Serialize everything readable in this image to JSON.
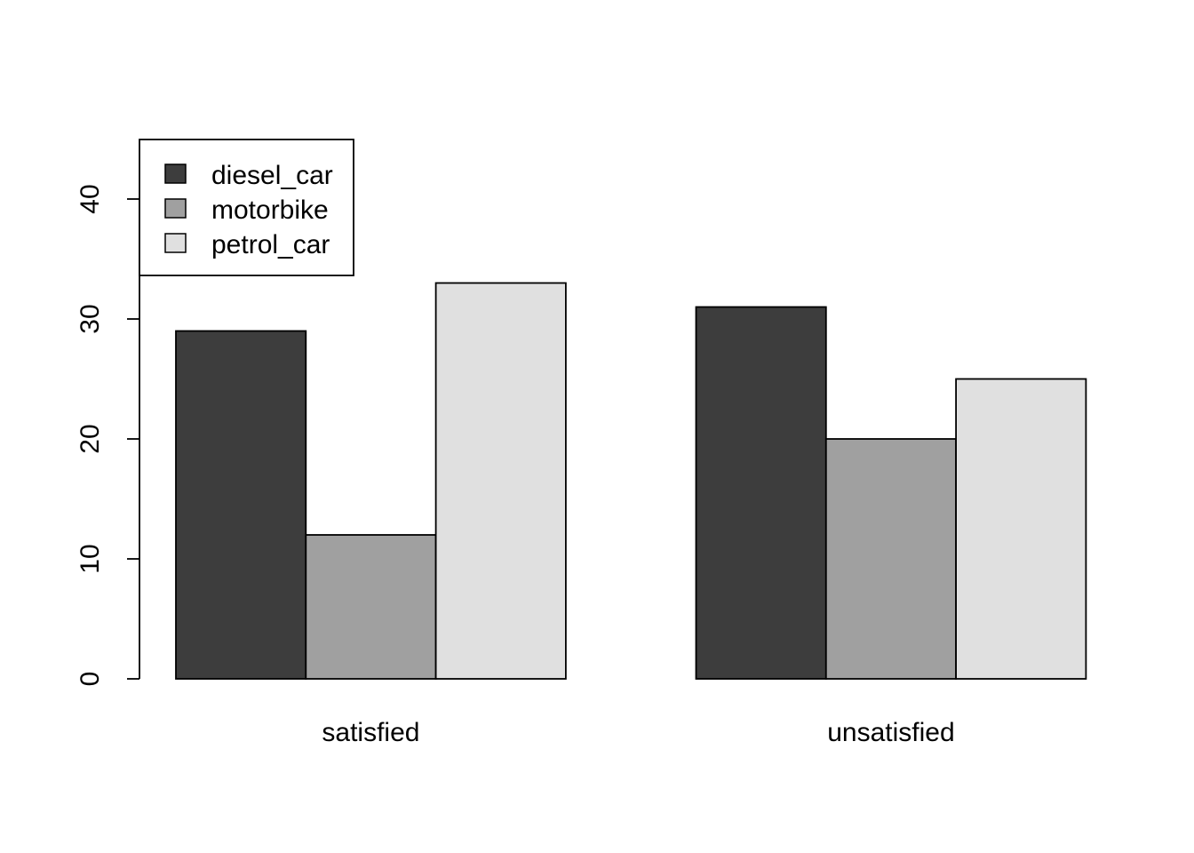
{
  "chart_data": {
    "type": "bar",
    "mode": "grouped",
    "title": "",
    "xlabel": "",
    "ylabel": "",
    "categories": [
      "satisfied",
      "unsatisfied"
    ],
    "series": [
      {
        "name": "diesel_car",
        "color": "#3d3d3d",
        "values": [
          29,
          31
        ]
      },
      {
        "name": "motorbike",
        "color": "#a0a0a0",
        "values": [
          12,
          20
        ]
      },
      {
        "name": "petrol_car",
        "color": "#e0e0e0",
        "values": [
          33,
          25
        ]
      }
    ],
    "ylim": [
      0,
      45
    ],
    "yticks": [
      "0",
      "10",
      "20",
      "30",
      "40"
    ],
    "grid": false,
    "legend_position": "top-left"
  }
}
